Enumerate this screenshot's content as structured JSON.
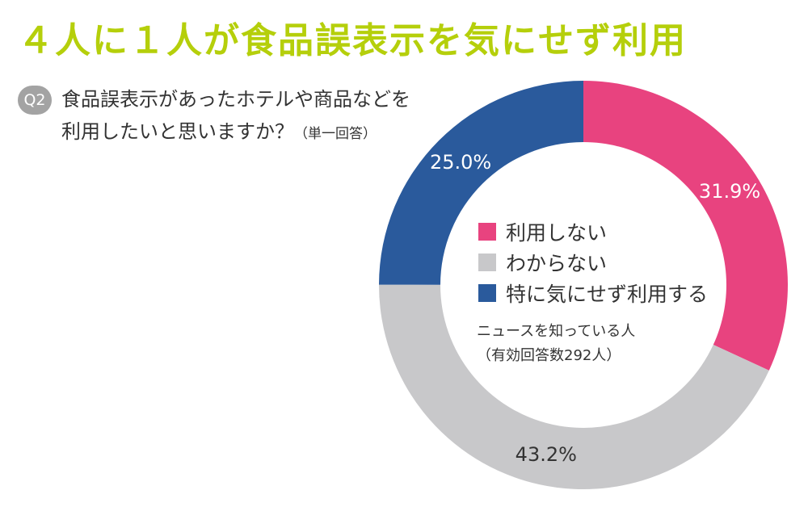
{
  "headline": "４人に１人が食品誤表示を気にせず利用",
  "question": {
    "badge": "Q2",
    "line1": "食品誤表示があったホテルや商品などを",
    "line2": "利用したいと思いますか？",
    "note": "（単一回答）"
  },
  "base": {
    "line1": "ニュースを知っている人",
    "line2": "（有効回答数292人）"
  },
  "chart_data": {
    "type": "pie",
    "variant": "donut",
    "slices": [
      {
        "label": "利用しない",
        "value": 31.9,
        "display": "31.9%",
        "color": "#e8437f"
      },
      {
        "label": "わからない",
        "value": 43.2,
        "display": "43.2%",
        "color": "#c8c8ca"
      },
      {
        "label": "特に気にせず利用する",
        "value": 25.0,
        "display": "25.0%",
        "color": "#2a5a9c"
      }
    ]
  }
}
